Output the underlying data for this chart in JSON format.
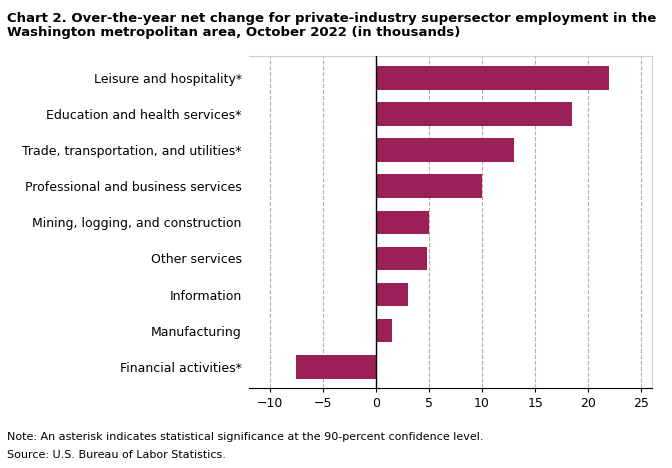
{
  "categories": [
    "Financial activities*",
    "Manufacturing",
    "Information",
    "Other services",
    "Mining, logging, and construction",
    "Professional and business services",
    "Trade, transportation, and utilities*",
    "Education and health services*",
    "Leisure and hospitality*"
  ],
  "values": [
    -7.5,
    1.5,
    3.0,
    4.8,
    5.0,
    10.0,
    13.0,
    18.5,
    22.0
  ],
  "bar_color": "#9b2057",
  "title_line1": "Chart 2. Over-the-year net change for private-industry supersector employment in the",
  "title_line2": "Washington metropolitan area, October 2022 (in thousands)",
  "xlim": [
    -12,
    26
  ],
  "xticks": [
    -10,
    -5,
    0,
    5,
    10,
    15,
    20,
    25
  ],
  "note": "Note: An asterisk indicates statistical significance at the 90-percent confidence level.",
  "source": "Source: U.S. Bureau of Labor Statistics.",
  "background_color": "#ffffff",
  "grid_color": "#b0b0b0",
  "title_fontsize": 9.5,
  "label_fontsize": 9.0,
  "tick_fontsize": 9.0
}
